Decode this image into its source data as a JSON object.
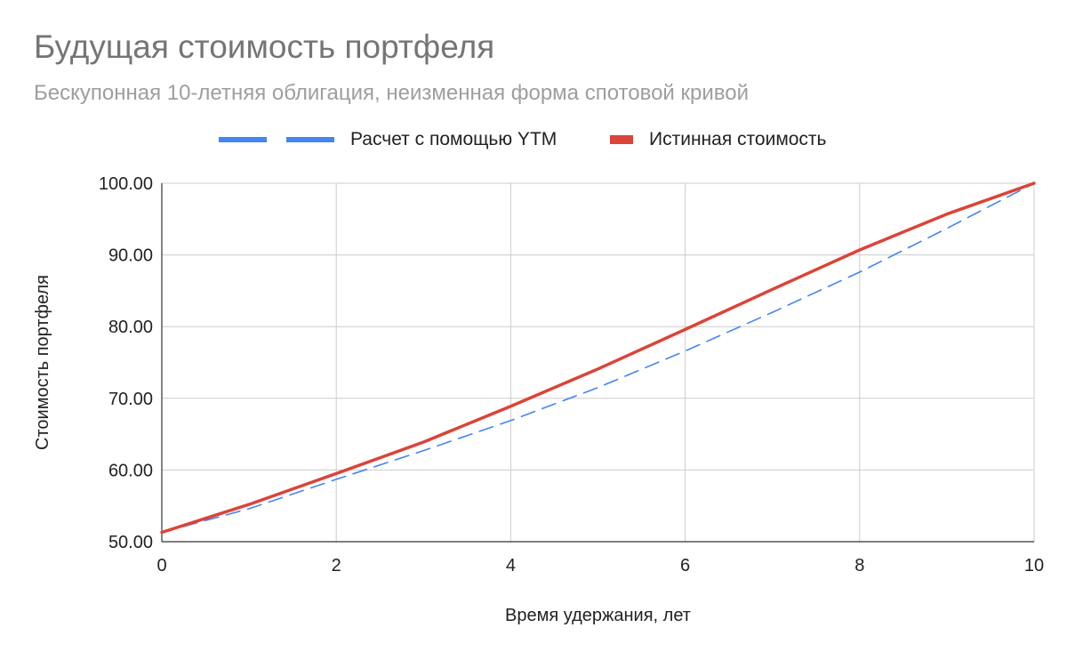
{
  "chart_data": {
    "type": "line",
    "title": "Будущая стоимость портфеля",
    "subtitle": "Бескупонная 10-летняя облигация, неизменная форма спотовой кривой",
    "xlabel": "Время удержания, лет",
    "ylabel": "Стоимость портфеля",
    "xlim": [
      0,
      10
    ],
    "ylim": [
      50,
      100
    ],
    "x_ticks": [
      "0",
      "2",
      "4",
      "6",
      "8",
      "10"
    ],
    "y_ticks": [
      "50.00",
      "60.00",
      "70.00",
      "80.00",
      "90.00",
      "100.00"
    ],
    "grid": true,
    "legend_position": "top",
    "x": [
      0,
      1,
      2,
      3,
      4,
      5,
      6,
      7,
      8,
      9,
      10
    ],
    "series": [
      {
        "name": "Расчет с помощью YTM",
        "color": "#4285f4",
        "style": "dashed",
        "values": [
          51.3,
          54.6,
          58.7,
          62.7,
          66.9,
          71.5,
          76.6,
          82.0,
          87.6,
          93.7,
          100.0
        ]
      },
      {
        "name": "Истинная стоимость",
        "color": "#db4437",
        "style": "solid",
        "values": [
          51.3,
          55.2,
          59.5,
          63.9,
          68.9,
          74.1,
          79.6,
          85.2,
          90.7,
          95.7,
          100.0
        ]
      }
    ]
  }
}
